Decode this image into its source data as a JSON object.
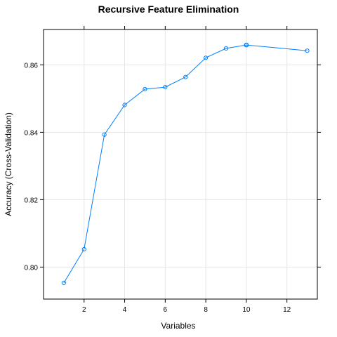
{
  "chart_data": {
    "type": "line",
    "title": "Recursive Feature Elimination",
    "xlabel": "Variables",
    "ylabel": "Accuracy (Cross-Validation)",
    "xlim": [
      0,
      13.5
    ],
    "ylim": [
      0.7905,
      0.8705
    ],
    "x_ticks": [
      2,
      4,
      6,
      8,
      10,
      12
    ],
    "x_tick_labels": [
      "2",
      "4",
      "6",
      "8",
      "10",
      "12"
    ],
    "y_ticks": [
      0.8,
      0.82,
      0.84,
      0.86
    ],
    "y_tick_labels": [
      "0.80",
      "0.82",
      "0.84",
      "0.86"
    ],
    "grid": true,
    "series": [
      {
        "x": [
          1,
          2,
          3,
          4,
          5,
          6,
          7,
          8,
          9,
          10,
          13
        ],
        "y": [
          0.7953,
          0.8053,
          0.8393,
          0.8481,
          0.8528,
          0.8534,
          0.8564,
          0.8621,
          0.8649,
          0.8659,
          0.8642
        ],
        "selected_index": 9
      }
    ],
    "colors": {
      "series": "#0080ff",
      "grid": "#e6e6e6",
      "frame": "#000000"
    }
  }
}
